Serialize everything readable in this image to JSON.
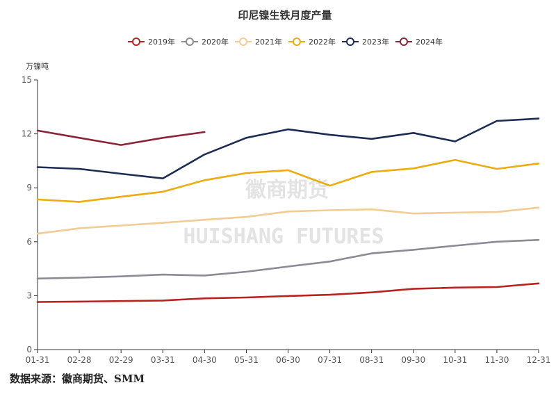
{
  "chart_data": {
    "type": "line",
    "title": "印尼镍生铁月度产量",
    "ylabel": "万镍吨",
    "xlabel": "",
    "ylim": [
      0,
      15
    ],
    "yticks": [
      0,
      3,
      6,
      9,
      12,
      15
    ],
    "categories": [
      "01-31",
      "02-28",
      "02-29",
      "03-31",
      "04-30",
      "05-31",
      "06-30",
      "07-31",
      "08-31",
      "09-30",
      "10-31",
      "11-30",
      "12-31"
    ],
    "legend_position": "top-center",
    "grid": false,
    "series": [
      {
        "name": "2019年",
        "color": "#b8231f",
        "values": [
          2.65,
          2.67,
          2.7,
          2.73,
          2.85,
          2.9,
          2.98,
          3.05,
          3.18,
          3.38,
          3.45,
          3.48,
          3.68
        ]
      },
      {
        "name": "2020年",
        "color": "#8c8a92",
        "values": [
          3.95,
          4.0,
          4.07,
          4.17,
          4.12,
          4.33,
          4.62,
          4.9,
          5.35,
          5.55,
          5.78,
          6.0,
          6.1
        ]
      },
      {
        "name": "2021年",
        "color": "#f2cc95",
        "values": [
          6.45,
          6.75,
          6.9,
          7.05,
          7.22,
          7.38,
          7.68,
          7.75,
          7.8,
          7.57,
          7.62,
          7.65,
          7.9
        ]
      },
      {
        "name": "2022年",
        "color": "#ecac0e",
        "values": [
          8.35,
          8.22,
          8.5,
          8.78,
          9.42,
          9.82,
          9.98,
          9.12,
          9.88,
          10.08,
          10.55,
          10.05,
          10.35
        ]
      },
      {
        "name": "2023年",
        "color": "#1c2c53",
        "values": [
          10.15,
          10.05,
          9.78,
          9.52,
          10.85,
          11.78,
          12.25,
          11.95,
          11.72,
          12.05,
          11.58,
          12.72,
          12.85
        ]
      },
      {
        "name": "2024年",
        "color": "#8a2438",
        "values": [
          12.18,
          11.78,
          11.38,
          11.78,
          12.1,
          null,
          null,
          null,
          null,
          null,
          null,
          null,
          null
        ]
      }
    ]
  },
  "watermark": {
    "cn": "徽商期货",
    "en": "HUISHANG FUTURES"
  },
  "source": "数据来源：徽商期货、SMM"
}
